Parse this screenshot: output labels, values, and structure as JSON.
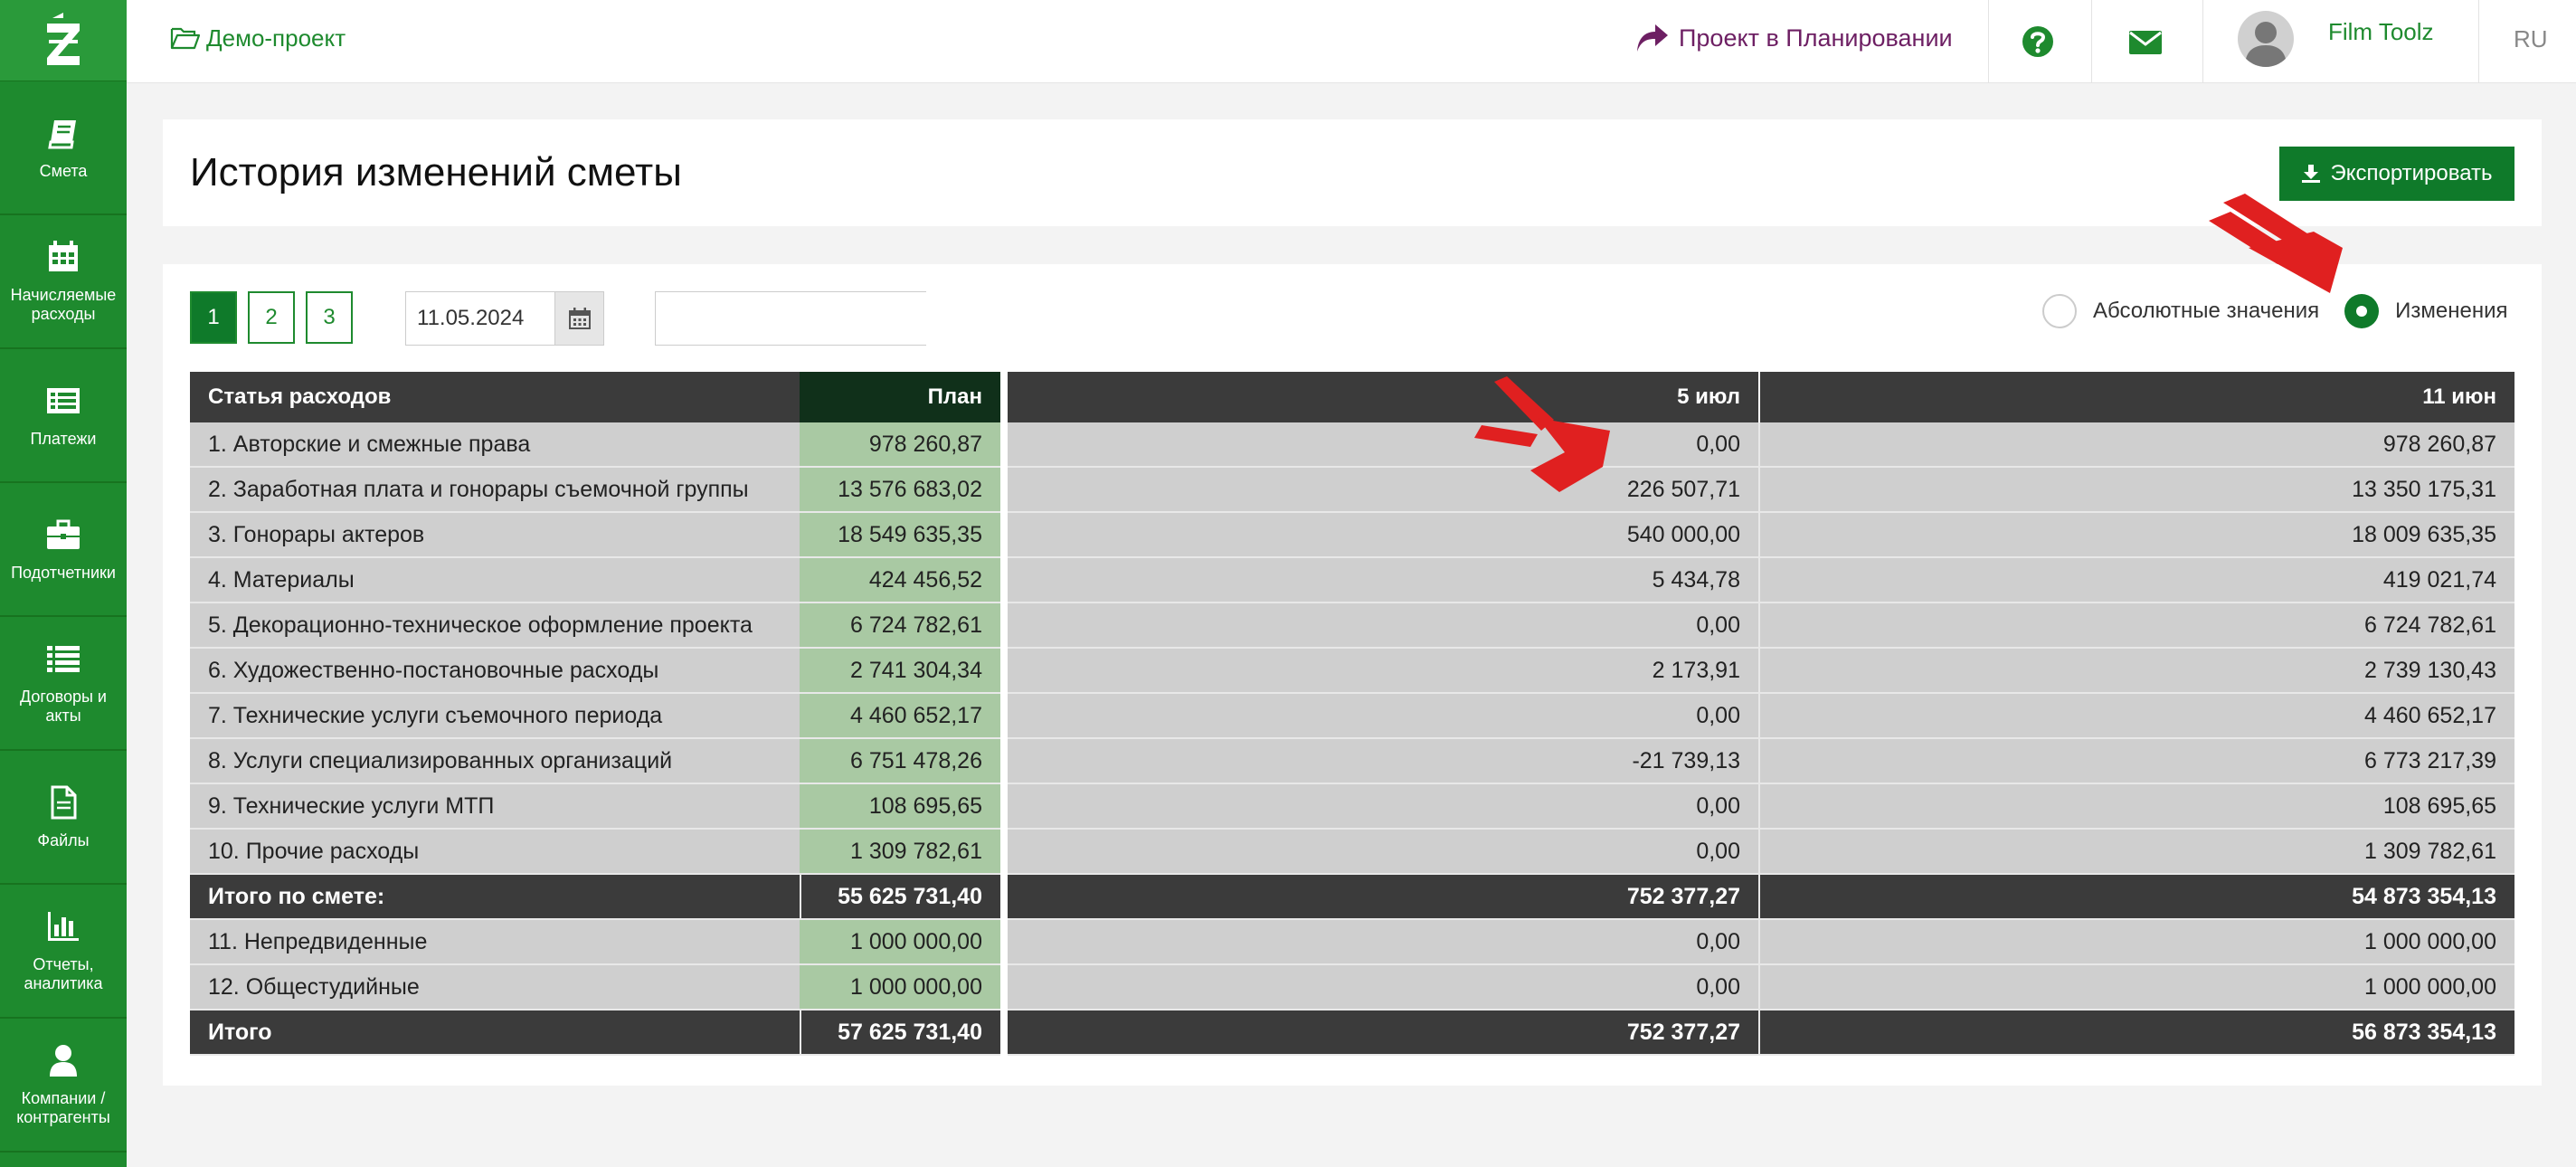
{
  "sidebar": {
    "items": [
      {
        "label": "Смета",
        "icon": "book-icon"
      },
      {
        "label": "Начисляемые расходы",
        "icon": "calendar-icon"
      },
      {
        "label": "Платежи",
        "icon": "list-card-icon"
      },
      {
        "label": "Подотчетники",
        "icon": "briefcase-icon"
      },
      {
        "label": "Договоры и акты",
        "icon": "list-icon"
      },
      {
        "label": "Файлы",
        "icon": "file-icon"
      },
      {
        "label": "Отчеты, аналитика",
        "icon": "bar-chart-icon"
      },
      {
        "label": "Компании / контрагенты",
        "icon": "user-icon"
      }
    ]
  },
  "topbar": {
    "project": "Демо-проект",
    "planning": "Проект в Планировании",
    "user_name": "Film Toolz",
    "lang": "RU"
  },
  "page": {
    "title": "История изменений сметы",
    "export_label": "Экспортировать"
  },
  "filters": {
    "pages": [
      "1",
      "2",
      "3"
    ],
    "active_page": "1",
    "date": "11.05.2024",
    "search_value": "",
    "radio_absolute": "Абсолютные значения",
    "radio_changes": "Изменения",
    "selected": "Изменения"
  },
  "colors": {
    "brand_green": "#1e8a2e",
    "button_green": "#0f7a2a",
    "plan_cell": "#a9c9a3",
    "header_dark": "#3b3b3b",
    "accent_red": "#e02020",
    "planning_purple": "#6d1f63"
  },
  "table": {
    "headers": {
      "name": "Статья расходов",
      "plan": "План",
      "col1": "5 июл",
      "col2": "11 июн"
    },
    "rows": [
      {
        "name": "1. Авторские и смежные права",
        "plan": "978 260,87",
        "col1": "0,00",
        "col2": "978 260,87"
      },
      {
        "name": "2. Заработная плата и гонорары съемочной группы",
        "plan": "13 576 683,02",
        "col1": "226 507,71",
        "col2": "13 350 175,31"
      },
      {
        "name": "3. Гонорары актеров",
        "plan": "18 549 635,35",
        "col1": "540 000,00",
        "col2": "18 009 635,35"
      },
      {
        "name": "4. Материалы",
        "plan": "424 456,52",
        "col1": "5 434,78",
        "col2": "419 021,74"
      },
      {
        "name": "5. Декорационно-техническое оформление проекта",
        "plan": "6 724 782,61",
        "col1": "0,00",
        "col2": "6 724 782,61"
      },
      {
        "name": "6. Художественно-постановочные расходы",
        "plan": "2 741 304,34",
        "col1": "2 173,91",
        "col2": "2 739 130,43"
      },
      {
        "name": "7. Технические услуги съемочного периода",
        "plan": "4 460 652,17",
        "col1": "0,00",
        "col2": "4 460 652,17"
      },
      {
        "name": "8. Услуги специализированных организаций",
        "plan": "6 751 478,26",
        "col1": "-21 739,13",
        "col2": "6 773 217,39"
      },
      {
        "name": "9. Технические услуги МТП",
        "plan": "108 695,65",
        "col1": "0,00",
        "col2": "108 695,65"
      },
      {
        "name": "10. Прочие расходы",
        "plan": "1 309 782,61",
        "col1": "0,00",
        "col2": "1 309 782,61"
      }
    ],
    "subtotal": {
      "name": "Итого по смете:",
      "plan": "55 625 731,40",
      "col1": "752 377,27",
      "col2": "54 873 354,13"
    },
    "extra_rows": [
      {
        "name": "11. Непредвиденные",
        "plan": "1 000 000,00",
        "col1": "0,00",
        "col2": "1 000 000,00"
      },
      {
        "name": "12. Общестудийные",
        "plan": "1 000 000,00",
        "col1": "0,00",
        "col2": "1 000 000,00"
      }
    ],
    "total": {
      "name": "Итого",
      "plan": "57 625 731,40",
      "col1": "752 377,27",
      "col2": "56 873 354,13"
    }
  }
}
